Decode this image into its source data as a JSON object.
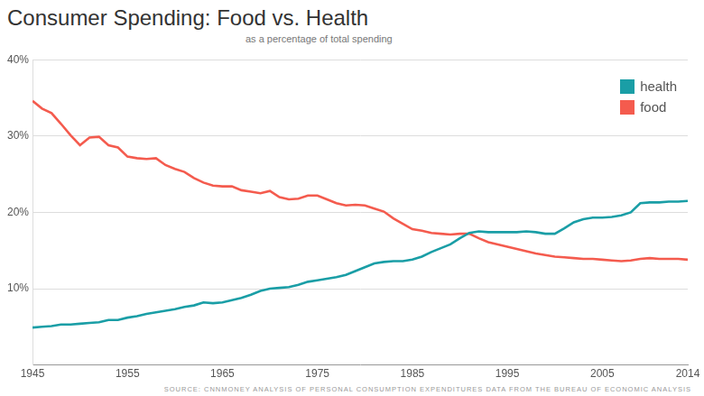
{
  "chart_data": {
    "type": "line",
    "title": "Consumer Spending: Food vs. Health",
    "subtitle": "as a percentage of total spending",
    "source": "SOURCE: CNNMONEY ANALYSIS OF PERSONAL CONSUMPTION EXPENDITURES DATA FROM THE BUREAU OF ECONOMIC ANALYSIS",
    "x": [
      1945,
      1946,
      1947,
      1948,
      1949,
      1950,
      1951,
      1952,
      1953,
      1954,
      1955,
      1956,
      1957,
      1958,
      1959,
      1960,
      1961,
      1962,
      1963,
      1964,
      1965,
      1966,
      1967,
      1968,
      1969,
      1970,
      1971,
      1972,
      1973,
      1974,
      1975,
      1976,
      1977,
      1978,
      1979,
      1980,
      1981,
      1982,
      1983,
      1984,
      1985,
      1986,
      1987,
      1988,
      1989,
      1990,
      1991,
      1992,
      1993,
      1994,
      1995,
      1996,
      1997,
      1998,
      1999,
      2000,
      2001,
      2002,
      2003,
      2004,
      2005,
      2006,
      2007,
      2008,
      2009,
      2010,
      2011,
      2012,
      2013,
      2014
    ],
    "series": [
      {
        "name": "health",
        "color": "#1a9ea6",
        "values": [
          4.9,
          5.0,
          5.1,
          5.3,
          5.3,
          5.4,
          5.5,
          5.6,
          5.9,
          5.9,
          6.2,
          6.4,
          6.7,
          6.9,
          7.1,
          7.3,
          7.6,
          7.8,
          8.2,
          8.1,
          8.2,
          8.5,
          8.8,
          9.2,
          9.7,
          10.0,
          10.1,
          10.2,
          10.5,
          10.9,
          11.1,
          11.3,
          11.5,
          11.8,
          12.3,
          12.8,
          13.3,
          13.5,
          13.6,
          13.6,
          13.8,
          14.2,
          14.8,
          15.3,
          15.8,
          16.6,
          17.3,
          17.5,
          17.4,
          17.4,
          17.4,
          17.4,
          17.5,
          17.4,
          17.2,
          17.2,
          17.9,
          18.7,
          19.1,
          19.3,
          19.3,
          19.4,
          19.6,
          20.0,
          21.2,
          21.3,
          21.3,
          21.4,
          21.4,
          21.5
        ]
      },
      {
        "name": "food",
        "color": "#f45b4e",
        "values": [
          34.6,
          33.6,
          33.0,
          31.6,
          30.1,
          28.8,
          29.8,
          29.9,
          28.8,
          28.5,
          27.3,
          27.1,
          27.0,
          27.1,
          26.2,
          25.7,
          25.3,
          24.5,
          23.9,
          23.5,
          23.4,
          23.4,
          22.9,
          22.7,
          22.5,
          22.8,
          22.0,
          21.7,
          21.8,
          22.2,
          22.2,
          21.7,
          21.2,
          20.9,
          21.0,
          20.9,
          20.5,
          20.1,
          19.2,
          18.5,
          17.8,
          17.6,
          17.3,
          17.2,
          17.1,
          17.2,
          17.2,
          16.6,
          16.1,
          15.8,
          15.5,
          15.2,
          14.9,
          14.6,
          14.4,
          14.2,
          14.1,
          14.0,
          13.9,
          13.9,
          13.8,
          13.7,
          13.6,
          13.7,
          13.9,
          14.0,
          13.9,
          13.9,
          13.9,
          13.8
        ]
      }
    ],
    "xlim": [
      1945,
      2014
    ],
    "xticks": [
      1945,
      1955,
      1965,
      1975,
      1985,
      1995,
      2005,
      2014
    ],
    "ylim": [
      0,
      40
    ],
    "yticks": [
      {
        "value": 10,
        "label": "10%"
      },
      {
        "value": 20,
        "label": "20%"
      },
      {
        "value": 30,
        "label": "30%"
      },
      {
        "value": 40,
        "label": "40%"
      }
    ],
    "grid": "y",
    "legend": "top-right"
  }
}
